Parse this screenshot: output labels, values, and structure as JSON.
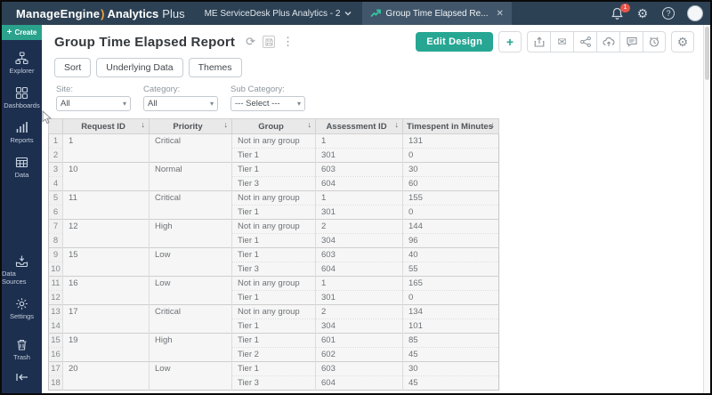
{
  "topbar": {
    "logo_brand": "ManageEngine",
    "logo_product": "Analytics",
    "logo_suffix": "Plus",
    "workspace": "ME ServiceDesk Plus Analytics - 2",
    "tab_label": "Group Time Elapsed Re...",
    "tab_close_glyph": "✕",
    "notification_count": "1",
    "help_glyph": "?"
  },
  "sidebar": {
    "create_label": "Create",
    "create_plus_glyph": "+",
    "items": [
      {
        "label": "Explorer",
        "icon": "sitemap-icon"
      },
      {
        "label": "Dashboards",
        "icon": "dashboard-grid-icon"
      },
      {
        "label": "Reports",
        "icon": "bar-chart-icon"
      },
      {
        "label": "Data",
        "icon": "table-icon"
      },
      {
        "label": "Data Sources",
        "icon": "import-tray-icon"
      },
      {
        "label": "Settings",
        "icon": "gear-icon"
      },
      {
        "label": "Trash",
        "icon": "trash-icon"
      }
    ]
  },
  "report": {
    "title": "Group Time Elapsed Report",
    "toolbar_buttons": [
      {
        "label": "Sort"
      },
      {
        "label": "Underlying Data"
      },
      {
        "label": "Themes"
      }
    ],
    "edit_design_label": "Edit Design",
    "plus_glyph": "+",
    "action_icons": [
      "export-icon",
      "email-icon",
      "share-icon",
      "publish-cloud-icon",
      "comment-icon",
      "alert-clock-icon",
      "gear-icon"
    ],
    "filters": [
      {
        "label": "Site:",
        "value": "All"
      },
      {
        "label": "Category:",
        "value": "All"
      },
      {
        "label": "Sub Category:",
        "value": "--- Select ---"
      }
    ]
  },
  "table": {
    "sort_glyph": "↓",
    "columns": [
      "Request ID",
      "Priority",
      "Group",
      "Assessment ID",
      "Timespent in Minutes"
    ],
    "groups": [
      {
        "request_id": "1",
        "priority": "Critical",
        "rows": [
          [
            "Not in any group",
            "1",
            "131"
          ],
          [
            "Tier 1",
            "301",
            "0"
          ]
        ]
      },
      {
        "request_id": "10",
        "priority": "Normal",
        "rows": [
          [
            "Tier 1",
            "603",
            "30"
          ],
          [
            "Tier 3",
            "604",
            "60"
          ]
        ]
      },
      {
        "request_id": "11",
        "priority": "Critical",
        "rows": [
          [
            "Not in any group",
            "1",
            "155"
          ],
          [
            "Tier 1",
            "301",
            "0"
          ]
        ]
      },
      {
        "request_id": "12",
        "priority": "High",
        "rows": [
          [
            "Not in any group",
            "2",
            "144"
          ],
          [
            "Tier 1",
            "304",
            "96"
          ]
        ]
      },
      {
        "request_id": "15",
        "priority": "Low",
        "rows": [
          [
            "Tier 1",
            "603",
            "40"
          ],
          [
            "Tier 3",
            "604",
            "55"
          ]
        ]
      },
      {
        "request_id": "16",
        "priority": "Low",
        "rows": [
          [
            "Not in any group",
            "1",
            "165"
          ],
          [
            "Tier 1",
            "301",
            "0"
          ]
        ]
      },
      {
        "request_id": "17",
        "priority": "Critical",
        "rows": [
          [
            "Not in any group",
            "2",
            "134"
          ],
          [
            "Tier 1",
            "304",
            "101"
          ]
        ]
      },
      {
        "request_id": "19",
        "priority": "High",
        "rows": [
          [
            "Tier 1",
            "601",
            "85"
          ],
          [
            "Tier 2",
            "602",
            "45"
          ]
        ]
      },
      {
        "request_id": "20",
        "priority": "Low",
        "rows": [
          [
            "Tier 1",
            "603",
            "30"
          ],
          [
            "Tier 3",
            "604",
            "45"
          ]
        ]
      }
    ]
  },
  "colors": {
    "accent_teal": "#27a793",
    "topbar_navy": "#2d4154",
    "sidebar_navy": "#1d2f4f",
    "badge_red": "#e8544a",
    "logo_orange": "#f0a13d"
  }
}
